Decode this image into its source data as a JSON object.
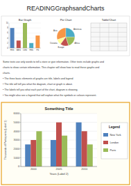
{
  "title": "READINGGraphsandCharts",
  "annotations": [
    "Some texts use only words to tell a store or give information. Other texts include graphs and",
    "charts to show certain information. This chapter will show how to read these graphs and",
    "charts.",
    "• The three basic elements of graphs are title, labels and legend",
    "• The title will tell you what the diagram, chart or graph is about.",
    "• The labels tell you what each part of the chart, diagram is showing.",
    "• You might also see a legend that will explain what the symbols or colours represent."
  ],
  "chart_data": [
    {
      "type": "bar",
      "title": "Bar Graph",
      "categories": [
        "FES",
        "MES",
        "CES",
        "FES",
        "FS"
      ],
      "values": [
        8,
        3,
        10,
        2,
        5
      ],
      "colors": [
        "#4f81bd",
        "#c0504d",
        "#9bbb59",
        "#4bacc6",
        "#f79646"
      ],
      "ylim": [
        0,
        10
      ],
      "yticks": [
        0,
        2,
        4,
        6,
        8,
        10
      ]
    },
    {
      "type": "pie",
      "title": "Pie Chart",
      "categories": [
        "Asia",
        "Oceania",
        "Europe",
        "Africa",
        "Americas"
      ],
      "values": [
        30,
        10,
        15,
        20,
        25
      ],
      "colors": [
        "#f79646",
        "#ffff99",
        "#c0504d",
        "#9bbb59",
        "#4bacc6"
      ]
    },
    {
      "type": "table",
      "title": "Table/Chart"
    },
    {
      "type": "bar",
      "title": "Something Title",
      "xlabel": "Years (Label 2)",
      "ylabel": "Thousands of Participants (Label 1)",
      "categories": [
        "2000",
        "2005",
        "2010"
      ],
      "series": [
        {
          "name": "New York",
          "color": "#4f81bd",
          "values": [
            2500,
            3000,
            5000
          ]
        },
        {
          "name": "London",
          "color": "#c0504d",
          "values": [
            3000,
            5000,
            4000
          ]
        },
        {
          "name": "Paris",
          "color": "#9bbb59",
          "values": [
            4000,
            3500,
            2500
          ]
        }
      ],
      "ylim": [
        0,
        6000
      ],
      "yticks": [
        0,
        1000,
        2000,
        3000,
        4000,
        5000,
        6000
      ],
      "grid": true,
      "legend": "right",
      "annotations": [
        "Legend"
      ]
    }
  ]
}
